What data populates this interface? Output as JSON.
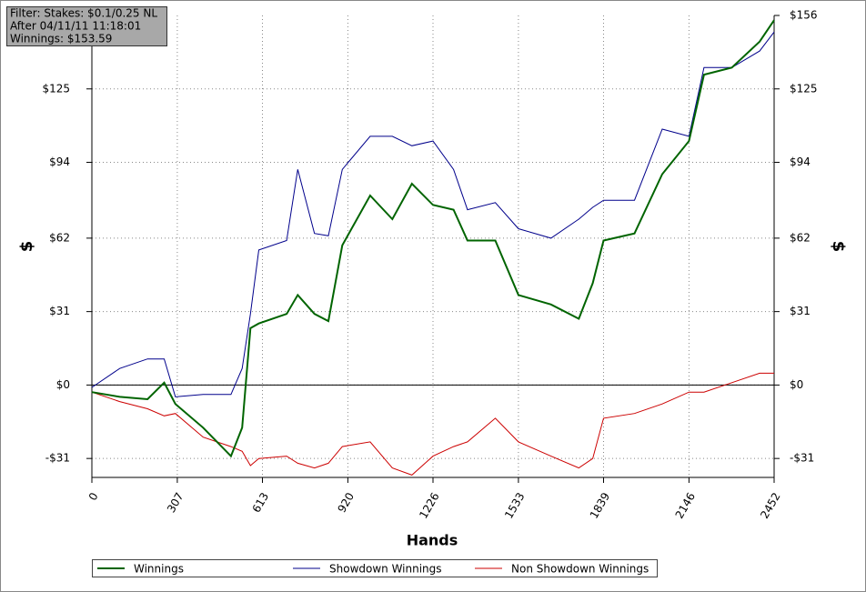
{
  "chart_data": {
    "type": "line",
    "annotations": [
      "Filter: Stakes: $0.1/0.25 NL",
      "After 04/11/11 11:18:01",
      "Winnings: $153.59"
    ],
    "x_label": "Hands",
    "y_label": "$",
    "y2_label": "$",
    "x": [
      0,
      100,
      200,
      260,
      300,
      400,
      500,
      540,
      570,
      600,
      700,
      740,
      800,
      850,
      900,
      1000,
      1080,
      1150,
      1226,
      1300,
      1350,
      1450,
      1533,
      1650,
      1750,
      1800,
      1839,
      1950,
      2050,
      2146,
      2200,
      2300,
      2400,
      2452
    ],
    "series": [
      {
        "name": "Winnings",
        "color": "#006400",
        "values": [
          -3,
          -5,
          -6,
          1,
          -8,
          -18,
          -30,
          -18,
          24,
          26,
          30,
          38,
          30,
          27,
          59,
          80,
          70,
          85,
          76,
          74,
          61,
          61,
          38,
          34,
          28,
          43,
          61,
          64,
          89,
          103,
          131,
          134,
          145,
          154
        ]
      },
      {
        "name": "Showdown Winnings",
        "color": "#00008b",
        "values": [
          -1,
          7,
          11,
          11,
          -5,
          -4,
          -4,
          7,
          30,
          57,
          61,
          91,
          64,
          63,
          91,
          105,
          105,
          101,
          103,
          91,
          74,
          77,
          66,
          62,
          70,
          75,
          78,
          78,
          108,
          105,
          134,
          134,
          141,
          149
        ]
      },
      {
        "name": "Non Showdown Winnings",
        "color": "#cc0000",
        "values": [
          -3,
          -7,
          -10,
          -13,
          -12,
          -22,
          -26,
          -28,
          -34,
          -31,
          -30,
          -33,
          -35,
          -33,
          -26,
          -24,
          -35,
          -38,
          -30,
          -26,
          -24,
          -14,
          -24,
          -30,
          -35,
          -31,
          -14,
          -12,
          -8,
          -3,
          -3,
          1,
          5,
          5
        ]
      }
    ],
    "xlim": [
      0,
      2452
    ],
    "xticks": [
      0,
      307,
      613,
      920,
      1226,
      1533,
      1839,
      2146,
      2452
    ],
    "ylim": [
      -39,
      156
    ],
    "yticks": [
      {
        "value": -31,
        "label": "-$31"
      },
      {
        "value": 0,
        "label": "$0"
      },
      {
        "value": 31,
        "label": "$31"
      },
      {
        "value": 62,
        "label": "$62"
      },
      {
        "value": 94,
        "label": "$94"
      },
      {
        "value": 125,
        "label": "$125"
      }
    ],
    "y2lim": [
      -39,
      156
    ],
    "y2ticks": [
      {
        "value": -31,
        "label": "-$31"
      },
      {
        "value": 0,
        "label": "$0"
      },
      {
        "value": 31,
        "label": "$31"
      },
      {
        "value": 62,
        "label": "$62"
      },
      {
        "value": 94,
        "label": "$94"
      },
      {
        "value": 125,
        "label": "$125"
      },
      {
        "value": 156,
        "label": "$156"
      }
    ],
    "grid": true
  }
}
